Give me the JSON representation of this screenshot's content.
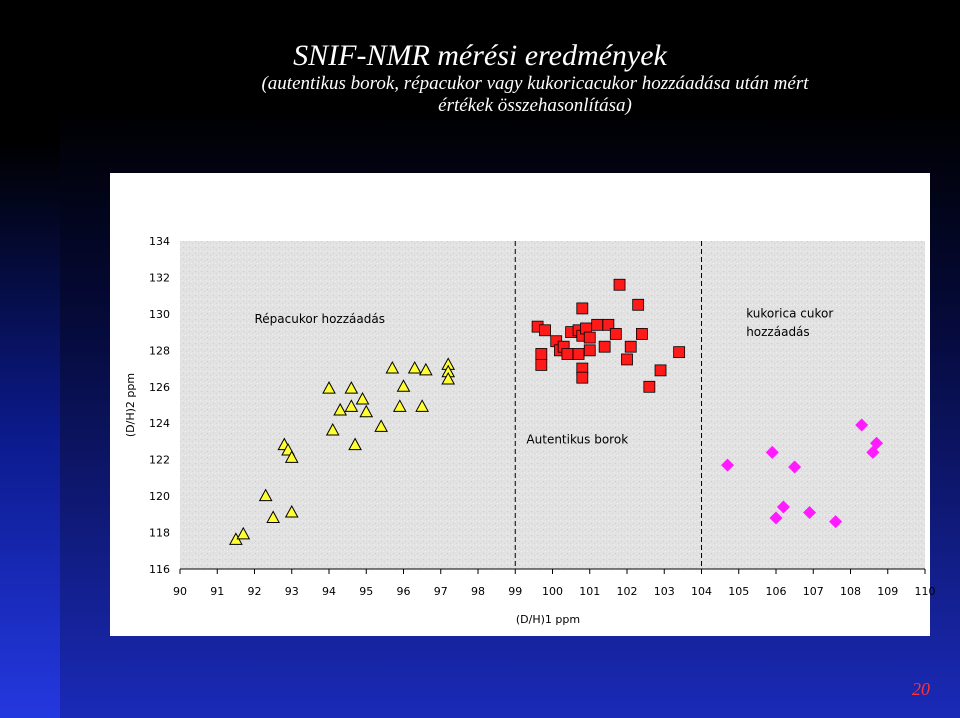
{
  "title": "SNIF-NMR mérési eredmények",
  "subtitle_line1": "(autentikus borok, répacukor  vagy kukoricacukor hozzáadása után mért",
  "subtitle_line2": "értékek összehasonlítása)",
  "page_number": "20",
  "chart_data": {
    "type": "scatter",
    "xlabel": "(D/H)1 ppm",
    "ylabel": "(D/H)2 ppm",
    "xlim": [
      90,
      110
    ],
    "ylim": [
      116,
      134
    ],
    "x_ticks": [
      90,
      91,
      92,
      93,
      94,
      95,
      96,
      97,
      98,
      99,
      100,
      101,
      102,
      103,
      104,
      105,
      106,
      107,
      108,
      109,
      110
    ],
    "y_ticks": [
      116,
      118,
      120,
      122,
      124,
      126,
      128,
      130,
      132,
      134
    ],
    "dividers_x": [
      99,
      104
    ],
    "grid": false,
    "annotations": [
      {
        "text": "Répacukor hozzáadás",
        "x": 92.0,
        "y": 129.5
      },
      {
        "text": "Autentikus borok",
        "x": 99.3,
        "y": 122.9
      },
      {
        "text": "kukorica cukor",
        "x": 105.2,
        "y": 129.8
      },
      {
        "text": "hozzáadás",
        "x": 105.2,
        "y": 128.8
      }
    ],
    "series": [
      {
        "marker": "triangle",
        "color": "#ffff33",
        "points": [
          [
            91.5,
            117.6
          ],
          [
            91.7,
            117.9
          ],
          [
            92.3,
            120.0
          ],
          [
            92.5,
            118.8
          ],
          [
            92.8,
            122.8
          ],
          [
            92.9,
            122.5
          ],
          [
            93.0,
            122.1
          ],
          [
            93.0,
            119.1
          ],
          [
            94.0,
            125.9
          ],
          [
            94.1,
            123.6
          ],
          [
            94.3,
            124.7
          ],
          [
            94.6,
            125.9
          ],
          [
            94.6,
            124.9
          ],
          [
            94.7,
            122.8
          ],
          [
            94.9,
            125.3
          ],
          [
            95.0,
            124.6
          ],
          [
            95.4,
            123.8
          ],
          [
            95.7,
            127.0
          ],
          [
            95.9,
            124.9
          ],
          [
            96.0,
            126.0
          ],
          [
            96.3,
            127.0
          ],
          [
            96.6,
            126.9
          ],
          [
            96.5,
            124.9
          ],
          [
            97.2,
            127.2
          ],
          [
            97.2,
            126.8
          ],
          [
            97.2,
            126.4
          ]
        ]
      },
      {
        "marker": "square",
        "color": "#ff1a1a",
        "points": [
          [
            99.6,
            129.3
          ],
          [
            99.7,
            127.8
          ],
          [
            99.7,
            127.2
          ],
          [
            99.8,
            129.1
          ],
          [
            100.1,
            128.5
          ],
          [
            100.2,
            128.0
          ],
          [
            100.3,
            128.2
          ],
          [
            100.4,
            127.8
          ],
          [
            100.5,
            129.0
          ],
          [
            100.7,
            129.1
          ],
          [
            100.7,
            127.8
          ],
          [
            100.8,
            130.3
          ],
          [
            100.8,
            128.8
          ],
          [
            100.8,
            127.0
          ],
          [
            100.8,
            126.5
          ],
          [
            100.9,
            129.2
          ],
          [
            101.0,
            128.7
          ],
          [
            101.0,
            128.0
          ],
          [
            101.2,
            129.4
          ],
          [
            101.4,
            128.2
          ],
          [
            101.5,
            129.4
          ],
          [
            101.7,
            128.9
          ],
          [
            101.8,
            131.6
          ],
          [
            102.0,
            127.5
          ],
          [
            102.1,
            128.2
          ],
          [
            102.3,
            130.5
          ],
          [
            102.4,
            128.9
          ],
          [
            102.6,
            126.0
          ],
          [
            102.9,
            126.9
          ],
          [
            103.4,
            127.9
          ]
        ]
      },
      {
        "marker": "diamond",
        "color": "#ff1aff",
        "points": [
          [
            104.7,
            121.7
          ],
          [
            105.9,
            122.4
          ],
          [
            106.0,
            118.8
          ],
          [
            106.2,
            119.4
          ],
          [
            106.5,
            121.6
          ],
          [
            106.9,
            119.1
          ],
          [
            107.6,
            118.6
          ],
          [
            108.3,
            123.9
          ],
          [
            108.6,
            122.4
          ],
          [
            108.7,
            122.9
          ]
        ]
      }
    ]
  }
}
